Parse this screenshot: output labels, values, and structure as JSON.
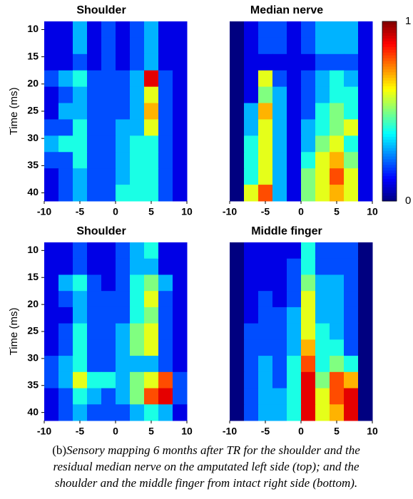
{
  "chart_data": [
    {
      "type": "heatmap",
      "title": "Shoulder",
      "ylabel": "Time (ms)",
      "colormap": "jet",
      "clim": [
        0,
        1
      ],
      "x": [
        -9,
        -7,
        -5,
        -3,
        -1,
        1,
        3,
        5,
        7,
        9
      ],
      "y": [
        10,
        13,
        16,
        19,
        22,
        25,
        28,
        31,
        34,
        37,
        40
      ],
      "xlim": [
        -10,
        10
      ],
      "ylim": [
        41.5,
        8.5
      ],
      "xticks": [
        -10,
        -5,
        0,
        5,
        10
      ],
      "yticks": [
        10,
        15,
        20,
        25,
        30,
        35,
        40
      ],
      "values": [
        [
          0.1,
          0.1,
          0.3,
          0.1,
          0.2,
          0.1,
          0.2,
          0.3,
          0.1,
          0.1
        ],
        [
          0.1,
          0.1,
          0.3,
          0.1,
          0.2,
          0.1,
          0.2,
          0.3,
          0.1,
          0.1
        ],
        [
          0.1,
          0.1,
          0.2,
          0.1,
          0.2,
          0.1,
          0.2,
          0.3,
          0.1,
          0.1
        ],
        [
          0.2,
          0.3,
          0.4,
          0.2,
          0.2,
          0.2,
          0.3,
          0.9,
          0.2,
          0.1
        ],
        [
          0.1,
          0.2,
          0.3,
          0.2,
          0.2,
          0.2,
          0.3,
          0.6,
          0.2,
          0.1
        ],
        [
          0.1,
          0.3,
          0.3,
          0.2,
          0.2,
          0.2,
          0.3,
          0.7,
          0.2,
          0.1
        ],
        [
          0.2,
          0.2,
          0.4,
          0.2,
          0.2,
          0.3,
          0.3,
          0.6,
          0.2,
          0.1
        ],
        [
          0.3,
          0.4,
          0.4,
          0.2,
          0.2,
          0.3,
          0.4,
          0.4,
          0.2,
          0.1
        ],
        [
          0.2,
          0.2,
          0.4,
          0.2,
          0.2,
          0.3,
          0.4,
          0.4,
          0.2,
          0.1
        ],
        [
          0.1,
          0.2,
          0.3,
          0.2,
          0.2,
          0.3,
          0.4,
          0.4,
          0.2,
          0.1
        ],
        [
          0.1,
          0.2,
          0.3,
          0.2,
          0.2,
          0.4,
          0.4,
          0.4,
          0.2,
          0.1
        ]
      ]
    },
    {
      "type": "heatmap",
      "title": "Median nerve",
      "colormap": "jet",
      "clim": [
        0,
        1
      ],
      "colorbar_ticks": [
        0,
        1
      ],
      "x": [
        -9,
        -7,
        -5,
        -3,
        -1,
        1,
        3,
        5,
        7,
        9
      ],
      "y": [
        10,
        13,
        16,
        19,
        22,
        25,
        28,
        31,
        34,
        37,
        40
      ],
      "xlim": [
        -10,
        10
      ],
      "ylim": [
        41.5,
        8.5
      ],
      "xticks": [
        -10,
        -5,
        0,
        5,
        10
      ],
      "values": [
        [
          0,
          0.1,
          0.2,
          0.2,
          0.1,
          0.2,
          0.3,
          0.3,
          0.3,
          0.1
        ],
        [
          0,
          0.1,
          0.2,
          0.2,
          0.1,
          0.2,
          0.3,
          0.3,
          0.3,
          0.1
        ],
        [
          0,
          0.1,
          0.1,
          0.1,
          0.1,
          0.1,
          0.2,
          0.2,
          0.2,
          0.1
        ],
        [
          0,
          0.1,
          0.6,
          0.2,
          0.1,
          0.2,
          0.3,
          0.4,
          0.3,
          0.1
        ],
        [
          0,
          0.1,
          0.5,
          0.3,
          0.1,
          0.2,
          0.3,
          0.4,
          0.4,
          0.1
        ],
        [
          0,
          0.3,
          0.7,
          0.3,
          0.1,
          0.2,
          0.4,
          0.5,
          0.4,
          0.1
        ],
        [
          0,
          0.3,
          0.6,
          0.3,
          0.1,
          0.3,
          0.4,
          0.5,
          0.6,
          0.1
        ],
        [
          0,
          0.4,
          0.6,
          0.3,
          0.1,
          0.3,
          0.5,
          0.6,
          0.4,
          0.1
        ],
        [
          0,
          0.4,
          0.6,
          0.3,
          0.1,
          0.4,
          0.6,
          0.7,
          0.5,
          0.1
        ],
        [
          0,
          0.4,
          0.6,
          0.3,
          0.1,
          0.5,
          0.6,
          0.8,
          0.6,
          0.1
        ],
        [
          0,
          0.6,
          0.8,
          0.3,
          0.1,
          0.5,
          0.6,
          0.7,
          0.6,
          0.1
        ]
      ]
    },
    {
      "type": "heatmap",
      "title": "Shoulder",
      "ylabel": "Time (ms)",
      "colormap": "jet",
      "clim": [
        0,
        1
      ],
      "x": [
        -9,
        -7,
        -5,
        -3,
        -1,
        1,
        3,
        5,
        7,
        9
      ],
      "y": [
        10,
        13,
        16,
        19,
        22,
        25,
        28,
        31,
        34,
        37,
        40
      ],
      "xlim": [
        -10,
        10
      ],
      "ylim": [
        41.5,
        8.5
      ],
      "xticks": [
        -10,
        -5,
        0,
        5,
        10
      ],
      "yticks": [
        10,
        15,
        20,
        25,
        30,
        35,
        40
      ],
      "values": [
        [
          0.1,
          0.1,
          0.2,
          0.1,
          0.1,
          0.2,
          0.3,
          0.4,
          0.1,
          0.1
        ],
        [
          0.1,
          0.1,
          0.2,
          0.1,
          0.1,
          0.2,
          0.3,
          0.3,
          0.1,
          0.1
        ],
        [
          0.1,
          0.3,
          0.4,
          0.2,
          0.1,
          0.2,
          0.4,
          0.5,
          0.3,
          0.1
        ],
        [
          0.1,
          0.2,
          0.3,
          0.2,
          0.2,
          0.2,
          0.4,
          0.6,
          0.2,
          0.1
        ],
        [
          0.1,
          0.1,
          0.3,
          0.2,
          0.2,
          0.2,
          0.4,
          0.5,
          0.2,
          0.1
        ],
        [
          0.1,
          0.2,
          0.4,
          0.2,
          0.2,
          0.3,
          0.5,
          0.6,
          0.2,
          0.1
        ],
        [
          0.1,
          0.2,
          0.4,
          0.2,
          0.2,
          0.3,
          0.5,
          0.6,
          0.2,
          0.1
        ],
        [
          0.2,
          0.3,
          0.4,
          0.2,
          0.2,
          0.3,
          0.3,
          0.3,
          0.2,
          0.1
        ],
        [
          0.2,
          0.3,
          0.6,
          0.4,
          0.4,
          0.3,
          0.5,
          0.6,
          0.8,
          0.2
        ],
        [
          0.1,
          0.2,
          0.4,
          0.3,
          0.2,
          0.3,
          0.5,
          0.8,
          0.9,
          0.2
        ],
        [
          0.1,
          0.2,
          0.3,
          0.2,
          0.2,
          0.2,
          0.3,
          0.4,
          0.3,
          0.1
        ]
      ]
    },
    {
      "type": "heatmap",
      "title": "Middle finger",
      "colormap": "jet",
      "clim": [
        0,
        1
      ],
      "x": [
        -9,
        -7,
        -5,
        -3,
        -1,
        1,
        3,
        5,
        7,
        9
      ],
      "y": [
        10,
        13,
        16,
        19,
        22,
        25,
        28,
        31,
        34,
        37,
        40
      ],
      "xlim": [
        -10,
        10
      ],
      "ylim": [
        41.5,
        8.5
      ],
      "xticks": [
        -10,
        -5,
        0,
        5,
        10
      ],
      "values": [
        [
          0,
          0.1,
          0.1,
          0.1,
          0.1,
          0.4,
          0.2,
          0.2,
          0.2,
          0
        ],
        [
          0,
          0.1,
          0.1,
          0.1,
          0.2,
          0.4,
          0.2,
          0.2,
          0.2,
          0
        ],
        [
          0,
          0.1,
          0.1,
          0.1,
          0.2,
          0.5,
          0.3,
          0.3,
          0.2,
          0
        ],
        [
          0,
          0.1,
          0.2,
          0.1,
          0.2,
          0.6,
          0.3,
          0.3,
          0.2,
          0
        ],
        [
          0,
          0.1,
          0.2,
          0.2,
          0.3,
          0.6,
          0.3,
          0.3,
          0.2,
          0
        ],
        [
          0,
          0.2,
          0.2,
          0.2,
          0.3,
          0.6,
          0.4,
          0.3,
          0.2,
          0
        ],
        [
          0,
          0.2,
          0.2,
          0.2,
          0.3,
          0.7,
          0.4,
          0.4,
          0.2,
          0
        ],
        [
          0,
          0.2,
          0.3,
          0.2,
          0.4,
          0.8,
          0.4,
          0.5,
          0.4,
          0
        ],
        [
          0,
          0.2,
          0.3,
          0.2,
          0.4,
          0.9,
          0.5,
          0.8,
          0.7,
          0
        ],
        [
          0,
          0.2,
          0.3,
          0.3,
          0.4,
          0.9,
          0.6,
          0.8,
          0.9,
          0
        ],
        [
          0,
          0.2,
          0.3,
          0.3,
          0.4,
          0.9,
          0.6,
          0.7,
          0.9,
          0
        ]
      ]
    }
  ],
  "caption": {
    "label": "(b)",
    "lines": [
      "Sensory mapping 6 months after TR for the shoulder and the",
      "residual median nerve on the amputated left side (top); and the",
      "shoulder and the middle finger from intact right side (bottom)."
    ]
  }
}
